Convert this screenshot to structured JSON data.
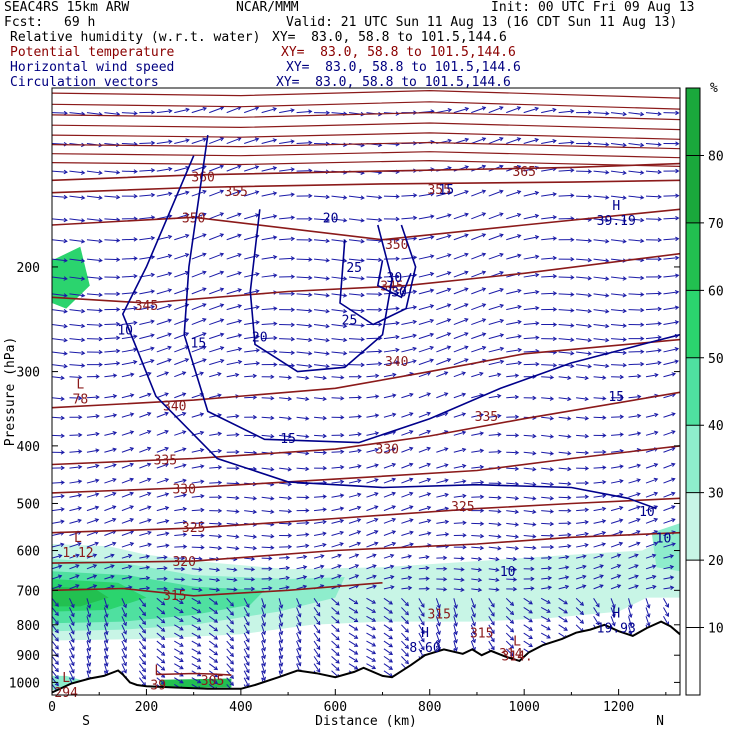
{
  "header": {
    "model": "SEAC4RS 15km ARW",
    "org": "NCAR/MMM",
    "init": "Init: 00 UTC Fri 09 Aug 13",
    "fcst_label": "Fcst:",
    "fcst_value": "69 h",
    "valid": "Valid: 21 UTC Sun 11 Aug 13 (16 CDT Sun 11 Aug 13)",
    "fields": [
      {
        "name": "Relative humidity (w.r.t. water)",
        "xy": "XY=  83.0, 58.8 to 101.5,144.6"
      },
      {
        "name": "Potential temperature",
        "xy": "XY=  83.0, 58.8 to 101.5,144.6"
      },
      {
        "name": "Horizontal wind speed",
        "xy": "XY=  83.0, 58.8 to 101.5,144.6"
      },
      {
        "name": "Circulation vectors",
        "xy": "XY=  83.0, 58.8 to 101.5,144.6"
      }
    ]
  },
  "colors": {
    "theta": "#8b1a1a",
    "wind": "#00008b",
    "vector": "#1a1aa8",
    "terrain": "#000000",
    "rh_30": "#c8f5e6",
    "rh_40": "#8eedcc",
    "rh_50": "#4fe0a0",
    "rh_60": "#2bd46e",
    "rh_70": "#22c050",
    "rh_80": "#1aa83c"
  },
  "chart_data": {
    "type": "cross-section",
    "xlabel": "Distance (km)",
    "ylabel": "Pressure (hPa)",
    "x_ticks": [
      0,
      200,
      400,
      600,
      800,
      1000,
      1200
    ],
    "y_ticks": [
      200,
      300,
      400,
      500,
      600,
      700,
      800,
      900,
      1000
    ],
    "xlim": [
      0,
      1330
    ],
    "ylim": [
      1050,
      100
    ],
    "y_scale": "log",
    "x_end_labels": {
      "left": "S",
      "right": "N"
    },
    "colorbar": {
      "unit": "%",
      "ticks": [
        10,
        20,
        30,
        40,
        50,
        60,
        70,
        80
      ]
    },
    "terrain_surface": [
      {
        "x": 0,
        "p": 1040
      },
      {
        "x": 40,
        "p": 1005
      },
      {
        "x": 80,
        "p": 985
      },
      {
        "x": 110,
        "p": 975
      },
      {
        "x": 140,
        "p": 955
      },
      {
        "x": 150,
        "p": 970
      },
      {
        "x": 165,
        "p": 1000
      },
      {
        "x": 180,
        "p": 1010
      },
      {
        "x": 200,
        "p": 1015
      },
      {
        "x": 260,
        "p": 1020
      },
      {
        "x": 330,
        "p": 1025
      },
      {
        "x": 400,
        "p": 1025
      },
      {
        "x": 430,
        "p": 1010
      },
      {
        "x": 480,
        "p": 980
      },
      {
        "x": 520,
        "p": 955
      },
      {
        "x": 560,
        "p": 965
      },
      {
        "x": 600,
        "p": 980
      },
      {
        "x": 640,
        "p": 960
      },
      {
        "x": 660,
        "p": 945
      },
      {
        "x": 700,
        "p": 975
      },
      {
        "x": 720,
        "p": 980
      },
      {
        "x": 760,
        "p": 935
      },
      {
        "x": 790,
        "p": 900
      },
      {
        "x": 830,
        "p": 880
      },
      {
        "x": 870,
        "p": 895
      },
      {
        "x": 890,
        "p": 880
      },
      {
        "x": 910,
        "p": 900
      },
      {
        "x": 930,
        "p": 885
      },
      {
        "x": 960,
        "p": 905
      },
      {
        "x": 990,
        "p": 920
      },
      {
        "x": 1010,
        "p": 890
      },
      {
        "x": 1040,
        "p": 865
      },
      {
        "x": 1080,
        "p": 845
      },
      {
        "x": 1110,
        "p": 825
      },
      {
        "x": 1140,
        "p": 815
      },
      {
        "x": 1170,
        "p": 800
      },
      {
        "x": 1200,
        "p": 820
      },
      {
        "x": 1230,
        "p": 835
      },
      {
        "x": 1260,
        "p": 810
      },
      {
        "x": 1290,
        "p": 790
      },
      {
        "x": 1310,
        "p": 805
      },
      {
        "x": 1330,
        "p": 830
      }
    ],
    "theta_contours": [
      {
        "label": "360",
        "points": [
          [
            0,
            143
          ],
          [
            300,
            140
          ],
          [
            700,
            138
          ],
          [
            1100,
            136
          ],
          [
            1330,
            134
          ]
        ],
        "label_at": [
          320,
          141
        ]
      },
      {
        "label": "355",
        "points": [
          [
            0,
            150
          ],
          [
            300,
            147
          ],
          [
            700,
            145
          ],
          [
            1100,
            144
          ],
          [
            1330,
            143
          ]
        ],
        "label_at": [
          390,
          149
        ]
      },
      {
        "label": "350",
        "points": [
          [
            0,
            170
          ],
          [
            300,
            165
          ],
          [
            700,
            180
          ],
          [
            1000,
            170
          ],
          [
            1330,
            160
          ]
        ],
        "label_at": [
          300,
          165
        ]
      },
      {
        "label": "345",
        "points": [
          [
            0,
            225
          ],
          [
            200,
            230
          ],
          [
            500,
            220
          ],
          [
            750,
            215
          ],
          [
            1000,
            205
          ],
          [
            1330,
            190
          ]
        ],
        "label_at": [
          200,
          232
        ]
      },
      {
        "label": "340",
        "points": [
          [
            0,
            345
          ],
          [
            300,
            335
          ],
          [
            600,
            320
          ],
          [
            800,
            300
          ],
          [
            1000,
            280
          ],
          [
            1330,
            265
          ]
        ],
        "label_at": [
          260,
          342
        ]
      },
      {
        "label": "335",
        "points": [
          [
            0,
            430
          ],
          [
            300,
            420
          ],
          [
            600,
            405
          ],
          [
            800,
            385
          ],
          [
            1000,
            360
          ],
          [
            1330,
            325
          ]
        ],
        "label_at": [
          240,
          422
        ]
      },
      {
        "label": "330",
        "points": [
          [
            0,
            480
          ],
          [
            300,
            470
          ],
          [
            600,
            455
          ],
          [
            900,
            440
          ],
          [
            1100,
            420
          ],
          [
            1330,
            400
          ]
        ],
        "label_at": [
          280,
          472
        ]
      },
      {
        "label": "325",
        "points": [
          [
            0,
            560
          ],
          [
            300,
            550
          ],
          [
            600,
            530
          ],
          [
            900,
            510
          ],
          [
            1100,
            500
          ],
          [
            1330,
            490
          ]
        ],
        "label_at": [
          300,
          548
        ]
      },
      {
        "label": "320",
        "points": [
          [
            0,
            630
          ],
          [
            300,
            625
          ],
          [
            600,
            600
          ],
          [
            900,
            585
          ],
          [
            1100,
            570
          ],
          [
            1330,
            560
          ]
        ],
        "label_at": [
          280,
          625
        ]
      },
      {
        "label": "315",
        "points": [
          [
            0,
            700
          ],
          [
            150,
            695
          ],
          [
            300,
            715
          ],
          [
            500,
            700
          ],
          [
            700,
            680
          ]
        ],
        "label_at": [
          260,
          713
        ]
      },
      {
        "label": "305",
        "points": [
          [
            220,
            970
          ],
          [
            260,
            968
          ],
          [
            300,
            966
          ],
          [
            340,
            968
          ],
          [
            380,
            972
          ]
        ],
        "label_at": [
          340,
          990
        ]
      }
    ],
    "theta_labels": [
      {
        "text": "350",
        "x": 730,
        "p": 183
      },
      {
        "text": "345",
        "x": 720,
        "p": 215
      },
      {
        "text": "340",
        "x": 730,
        "p": 288
      },
      {
        "text": "335",
        "x": 920,
        "p": 356
      },
      {
        "text": "330",
        "x": 710,
        "p": 404
      },
      {
        "text": "325",
        "x": 870,
        "p": 505
      },
      {
        "text": "315",
        "x": 820,
        "p": 765
      },
      {
        "text": "315",
        "x": 910,
        "p": 825
      },
      {
        "text": "314.",
        "x": 980,
        "p": 893
      },
      {
        "text": "365",
        "x": 1000,
        "p": 138
      },
      {
        "text": "355",
        "x": 820,
        "p": 148
      }
    ],
    "wind_contours": [
      {
        "label": "10",
        "points": [
          [
            300,
            130
          ],
          [
            200,
            200
          ],
          [
            150,
            240
          ],
          [
            220,
            330
          ],
          [
            350,
            420
          ],
          [
            500,
            460
          ],
          [
            700,
            470
          ],
          [
            900,
            465
          ],
          [
            1100,
            470
          ],
          [
            1220,
            490
          ],
          [
            1280,
            510
          ]
        ],
        "label_at": [
          155,
          255
        ]
      },
      {
        "label": "15",
        "points": [
          [
            330,
            120
          ],
          [
            290,
            200
          ],
          [
            280,
            260
          ],
          [
            330,
            350
          ],
          [
            450,
            390
          ],
          [
            650,
            395
          ],
          [
            800,
            360
          ],
          [
            950,
            320
          ],
          [
            1100,
            290
          ],
          [
            1250,
            270
          ],
          [
            1330,
            260
          ]
        ],
        "label_at": [
          310,
          268
        ]
      },
      {
        "label": "20",
        "points": [
          [
            440,
            160
          ],
          [
            420,
            220
          ],
          [
            430,
            270
          ],
          [
            520,
            300
          ],
          [
            620,
            295
          ],
          [
            700,
            260
          ],
          [
            720,
            210
          ],
          [
            690,
            170
          ]
        ],
        "label_at": [
          440,
          262
        ]
      },
      {
        "label": "25",
        "points": [
          [
            620,
            180
          ],
          [
            610,
            230
          ],
          [
            680,
            250
          ],
          [
            750,
            235
          ],
          [
            770,
            200
          ],
          [
            740,
            170
          ]
        ],
        "label_at": [
          630,
          245
        ]
      },
      {
        "label": "30",
        "points": [
          [
            700,
            195
          ],
          [
            690,
            215
          ],
          [
            740,
            225
          ],
          [
            760,
            205
          ]
        ],
        "label_at": [
          735,
          220
        ]
      }
    ],
    "wind_labels": [
      {
        "text": "25",
        "x": 640,
        "p": 200
      },
      {
        "text": "30",
        "x": 725,
        "p": 208
      },
      {
        "text": "15",
        "x": 1195,
        "p": 330
      },
      {
        "text": "15",
        "x": 500,
        "p": 388
      },
      {
        "text": "10",
        "x": 1260,
        "p": 515
      },
      {
        "text": "10",
        "x": 1295,
        "p": 570
      },
      {
        "text": "10",
        "x": 965,
        "p": 650
      },
      {
        "text": "20",
        "x": 590,
        "p": 165
      },
      {
        "text": "15",
        "x": 835,
        "p": 148
      }
    ],
    "rh_regions": [
      {
        "class": 30,
        "points": [
          [
            0,
            585
          ],
          [
            120,
            590
          ],
          [
            200,
            610
          ],
          [
            350,
            630
          ],
          [
            500,
            645
          ],
          [
            700,
            640
          ],
          [
            900,
            625
          ],
          [
            1100,
            610
          ],
          [
            1250,
            600
          ],
          [
            1330,
            560
          ],
          [
            1330,
            720
          ],
          [
            1260,
            720
          ],
          [
            1200,
            760
          ],
          [
            1050,
            780
          ],
          [
            900,
            790
          ],
          [
            700,
            790
          ],
          [
            550,
            800
          ],
          [
            400,
            830
          ],
          [
            200,
            845
          ],
          [
            0,
            850
          ]
        ]
      },
      {
        "class": 40,
        "points": [
          [
            0,
            620
          ],
          [
            150,
            630
          ],
          [
            300,
            660
          ],
          [
            500,
            670
          ],
          [
            620,
            665
          ],
          [
            600,
            720
          ],
          [
            480,
            760
          ],
          [
            300,
            800
          ],
          [
            150,
            815
          ],
          [
            0,
            820
          ]
        ]
      },
      {
        "class": 50,
        "points": [
          [
            0,
            650
          ],
          [
            160,
            660
          ],
          [
            300,
            690
          ],
          [
            450,
            700
          ],
          [
            420,
            740
          ],
          [
            300,
            770
          ],
          [
            150,
            790
          ],
          [
            0,
            795
          ]
        ]
      },
      {
        "class": 60,
        "points": [
          [
            0,
            670
          ],
          [
            140,
            680
          ],
          [
            200,
            720
          ],
          [
            120,
            755
          ],
          [
            0,
            760
          ]
        ]
      },
      {
        "class": 70,
        "points": [
          [
            0,
            690
          ],
          [
            90,
            695
          ],
          [
            120,
            720
          ],
          [
            60,
            745
          ],
          [
            0,
            745
          ]
        ]
      },
      {
        "class": 40,
        "points": [
          [
            1270,
            560
          ],
          [
            1330,
            540
          ],
          [
            1330,
            650
          ],
          [
            1280,
            640
          ]
        ]
      },
      {
        "class": 60,
        "points": [
          [
            0,
            195
          ],
          [
            60,
            185
          ],
          [
            80,
            215
          ],
          [
            30,
            235
          ],
          [
            0,
            230
          ]
        ]
      },
      {
        "class": 70,
        "points": [
          [
            230,
            990
          ],
          [
            380,
            985
          ],
          [
            380,
            1020
          ],
          [
            230,
            1020
          ]
        ]
      },
      {
        "class": 40,
        "points": [
          [
            0,
            975
          ],
          [
            30,
            975
          ],
          [
            60,
            990
          ],
          [
            60,
            1030
          ],
          [
            0,
            1030
          ]
        ]
      }
    ],
    "highs_lows": [
      {
        "kind": "L",
        "value": "78",
        "x": 60,
        "p": 325
      },
      {
        "kind": "L",
        "value": "1.12",
        "x": 55,
        "p": 590
      },
      {
        "kind": "H",
        "value": "8.60",
        "x": 790,
        "p": 852
      },
      {
        "kind": "L",
        "value": "314.",
        "x": 985,
        "p": 880
      },
      {
        "kind": "H",
        "value": "19.93",
        "x": 1195,
        "p": 790
      },
      {
        "kind": "H",
        "value": "39.19",
        "x": 1195,
        "p": 163
      },
      {
        "kind": "L",
        "value": "39",
        "x": 225,
        "p": 985
      },
      {
        "kind": "L",
        "value": "294",
        "x": 30,
        "p": 1015
      }
    ]
  }
}
